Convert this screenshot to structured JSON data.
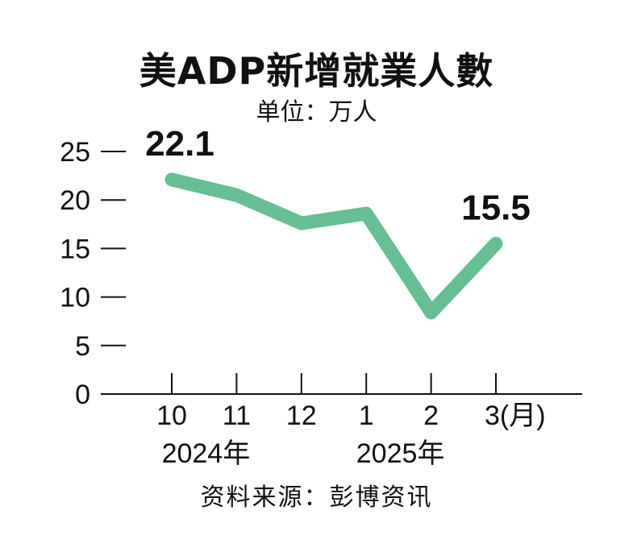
{
  "chart_data": {
    "type": "line",
    "title": "美ADP新增就業人數",
    "subtitle": "单位：万人",
    "categories": [
      "10",
      "11",
      "12",
      "1",
      "2",
      "3"
    ],
    "x_unit_label": "(月)",
    "year_labels": [
      {
        "label": "2024年",
        "at_category": "11"
      },
      {
        "label": "2025年",
        "at_category": "2"
      }
    ],
    "series": [
      {
        "values": [
          22.1,
          20.5,
          17.6,
          18.6,
          8.4,
          15.5
        ],
        "color": "#66bf94"
      }
    ],
    "data_labels": [
      {
        "category": "10",
        "text": "22.1"
      },
      {
        "category": "3",
        "text": "15.5"
      }
    ],
    "yticks": [
      0,
      5,
      10,
      15,
      20,
      25
    ],
    "ylim": [
      0,
      25
    ],
    "grid": false,
    "source": "资料来源：彭博资讯"
  }
}
